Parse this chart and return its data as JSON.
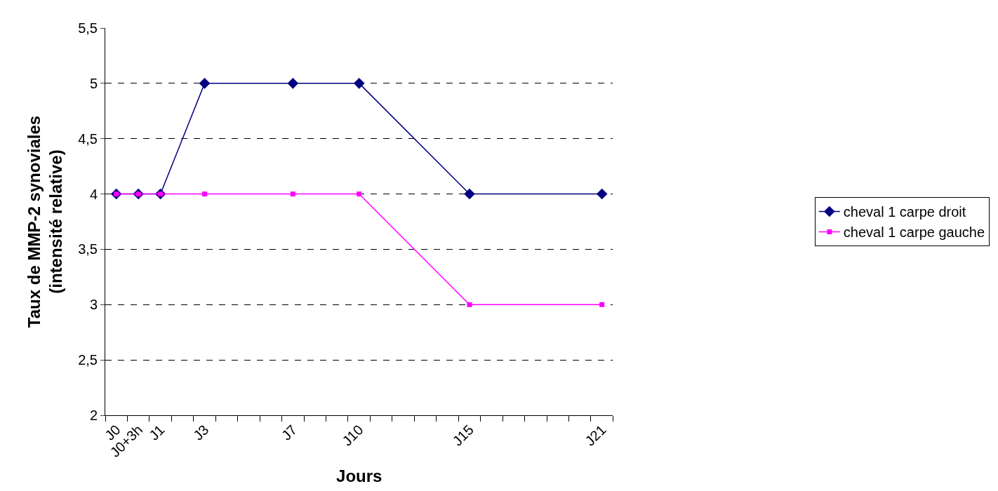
{
  "chart_data": {
    "type": "line",
    "xlabel": "Jours",
    "ylabel": "Taux de MMP-2 synoviales\n(intensité relative)",
    "categories": [
      "J0",
      "J0+3h",
      "J1",
      null,
      "J3",
      null,
      null,
      null,
      "J7",
      null,
      null,
      "J10",
      null,
      null,
      null,
      null,
      "J15",
      null,
      null,
      null,
      null,
      null,
      "J21"
    ],
    "series": [
      {
        "name": "cheval 1 carpe droit",
        "color": "#000080",
        "marker": "diamond",
        "values": [
          4,
          4,
          4,
          null,
          5,
          null,
          null,
          null,
          5,
          null,
          null,
          5,
          null,
          null,
          null,
          null,
          4,
          null,
          null,
          null,
          null,
          null,
          4
        ]
      },
      {
        "name": "cheval 1 carpe gauche",
        "color": "#ff00ff",
        "marker": "square",
        "values": [
          4,
          4,
          4,
          null,
          4,
          null,
          null,
          null,
          4,
          null,
          null,
          4,
          null,
          null,
          null,
          null,
          3,
          null,
          null,
          null,
          null,
          null,
          3
        ]
      }
    ],
    "ylim": [
      2,
      5.5
    ],
    "yticks": [
      2,
      {
        "value": 2.5,
        "label": "2,5"
      },
      3,
      {
        "value": 3.5,
        "label": "3,5"
      },
      4,
      {
        "value": 4.5,
        "label": "4,5"
      },
      5,
      {
        "value": 5.5,
        "label": "5,5"
      }
    ],
    "grid": "y",
    "legend": "right",
    "line_style": "solid"
  }
}
